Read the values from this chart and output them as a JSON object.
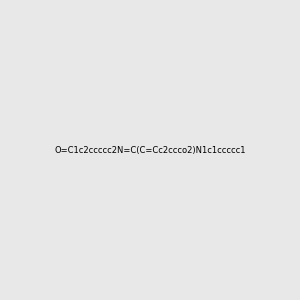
{
  "smiles": "O=C1c2ccccc2N=C(C=Cc2ccco2)N1c1ccccc1",
  "title": "",
  "bg_color": "#e8e8e8",
  "bond_color_default": "#000000",
  "atom_colors": {
    "N": "#0000ff",
    "O": "#ff0000"
  },
  "figsize": [
    3.0,
    3.0
  ],
  "dpi": 100
}
